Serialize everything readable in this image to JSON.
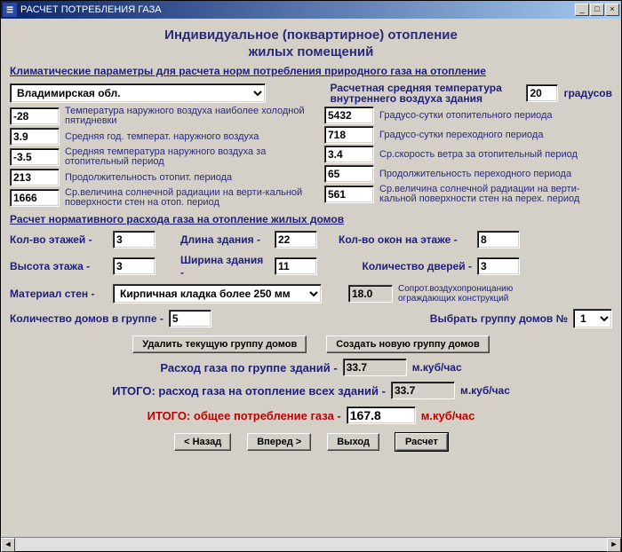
{
  "window": {
    "title": "РАСЧЕТ ПОТРЕБЛЕНИЯ ГАЗА",
    "icon_text": "☰"
  },
  "header": {
    "line1": "Индивидуальное (поквартирное) отопление",
    "line2": "жилых помещений"
  },
  "section_climate": {
    "heading": "Климатические параметры для расчета норм потребления природного газа на отопление",
    "region_value": "Владимирская обл.",
    "indoor_temp_label": "Расчетная средняя температура внутреннего воздуха здания",
    "indoor_temp_value": "20",
    "indoor_temp_unit": "градусов",
    "left": [
      {
        "value": "-28",
        "label": "Температура наружного воздуха наиболее холодной пятидневки"
      },
      {
        "value": "3.9",
        "label": "Средняя год. температ. наружного воздуха"
      },
      {
        "value": "-3.5",
        "label": "Средняя температура наружного воздуха за отопительный период"
      },
      {
        "value": "213",
        "label": "Продолжительность отопит. периода"
      },
      {
        "value": "1666",
        "label": "Ср.величина солнечной радиации на верти-кальной поверхности стен на отоп. период"
      }
    ],
    "right": [
      {
        "value": "5432",
        "label": "Градусо-сутки отопительного периода"
      },
      {
        "value": "718",
        "label": "Градусо-сутки переходного периода"
      },
      {
        "value": "3.4",
        "label": "Ср.скорость ветра за отопительный период"
      },
      {
        "value": "65",
        "label": "Продолжительность переходного периода"
      },
      {
        "value": "561",
        "label": "Ср.величина солнечной радиации на верти-кальной поверхности стен на перех. период"
      }
    ]
  },
  "section_norm": {
    "heading": "Расчет нормативного расхода газа на отопление жилых домов",
    "floors_label": "Кол-во этажей -",
    "floors_value": "3",
    "length_label": "Длина здания -",
    "length_value": "22",
    "windows_label": "Кол-во окон на этаже -",
    "windows_value": "8",
    "height_label": "Высота этажа  -",
    "height_value": "3",
    "width_label": "Ширина здания -",
    "width_value": "11",
    "doors_label": "Количество дверей -",
    "doors_value": "3",
    "wall_label": "Материал стен -",
    "wall_value": "Кирпичная кладка более 250 мм",
    "resist_value": "18.0",
    "resist_label": "Сопрот.воздухопроницанию ограждающих конструкций",
    "houses_label": "Количество домов в группе -",
    "houses_value": "5",
    "group_sel_label": "Выбрать группу домов №",
    "group_sel_value": "1",
    "btn_delete_group": "Удалить текущую группу домов",
    "btn_create_group": "Создать новую группу домов"
  },
  "totals": {
    "group_label": "Расход газа по группе зданий -",
    "group_value": "33.7",
    "all_label": "ИТОГО: расход газа на отопление всех зданий -",
    "all_value": "33.7",
    "unit": "м.куб/час",
    "overall_label": "ИТОГО: общее потребление газа -",
    "overall_value": "167.8",
    "overall_unit": "м.куб/час"
  },
  "nav": {
    "back": "< Назад",
    "forward": "Вперед >",
    "exit": "Выход",
    "calc": "Расчет"
  },
  "colors": {
    "bg": "#d4d0c8",
    "title_grad_from": "#0a246a",
    "title_grad_to": "#a6caf0",
    "text_main": "#20207a",
    "red": "#c00000"
  }
}
